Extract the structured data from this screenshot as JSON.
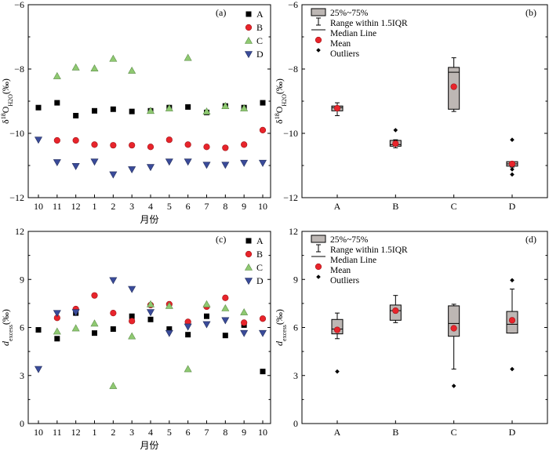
{
  "colors": {
    "A": "#000000",
    "B": "#e8242b",
    "C": "#8fc971",
    "D": "#3a4b9a",
    "box_fill": "#bdb7b4",
    "axis": "#000000"
  },
  "chart_data": [
    {
      "panel": "(a)",
      "type": "scatter",
      "ylabel_html": "δ<tspan baseline-shift='super' font-size='7'>18</tspan>O<tspan baseline-shift='sub' font-size='7'>H2O</tspan>(‰)",
      "ylabel": "δ18OH2O(‰)",
      "xlabel": "月份",
      "x_ticks": [
        "10",
        "11",
        "12",
        "1",
        "2",
        "3",
        "4",
        "5",
        "6",
        "7",
        "8",
        "9",
        "10"
      ],
      "ylim": [
        -12,
        -6
      ],
      "y_ticks": [
        -12,
        -10,
        -8,
        -6
      ],
      "legend": [
        "A",
        "B",
        "C",
        "D"
      ],
      "legend_position": "top-right",
      "series": [
        {
          "name": "A",
          "marker": "square",
          "values": [
            -9.2,
            -9.05,
            -9.45,
            -9.3,
            -9.25,
            -9.32,
            -9.3,
            -9.2,
            -9.18,
            -9.35,
            -9.15,
            -9.2,
            -9.05
          ]
        },
        {
          "name": "B",
          "marker": "circle",
          "values": [
            null,
            -10.22,
            -10.22,
            -10.35,
            -10.37,
            -10.37,
            -10.42,
            -10.2,
            -10.35,
            -10.42,
            -10.45,
            -10.35,
            -9.9
          ]
        },
        {
          "name": "C",
          "marker": "triangle-up",
          "values": [
            null,
            -8.22,
            -7.95,
            -7.98,
            -7.68,
            -8.05,
            -9.3,
            -9.22,
            -7.65,
            -9.32,
            -9.15,
            -9.22,
            null
          ]
        },
        {
          "name": "D",
          "marker": "triangle-down",
          "values": [
            -10.2,
            -10.9,
            -11.02,
            -10.88,
            -11.28,
            -11.12,
            -11.05,
            -10.88,
            -10.88,
            -10.98,
            -10.98,
            -10.92,
            -10.92
          ]
        }
      ]
    },
    {
      "panel": "(b)",
      "type": "box",
      "ylabel": "δ18OH2O(‰)",
      "categories": [
        "A",
        "B",
        "C",
        "D"
      ],
      "ylim": [
        -12,
        -6
      ],
      "y_ticks": [
        -12,
        -10,
        -8,
        -6
      ],
      "legend": [
        "25%~75%",
        "Range within 1.5IQR",
        "Median Line",
        "Mean",
        "Outliers"
      ],
      "legend_position": "top-left",
      "boxes": [
        {
          "name": "A",
          "whisker_low": -9.45,
          "q1": -9.3,
          "median": -9.2,
          "q3": -9.15,
          "whisker_high": -9.05,
          "mean": -9.22,
          "outliers": []
        },
        {
          "name": "B",
          "whisker_low": -10.45,
          "q1": -10.4,
          "median": -10.35,
          "q3": -10.22,
          "whisker_high": -10.2,
          "mean": -10.32,
          "outliers": [
            -9.9
          ]
        },
        {
          "name": "C",
          "whisker_low": -9.32,
          "q1": -9.25,
          "median": -8.1,
          "q3": -7.95,
          "whisker_high": -7.65,
          "mean": -8.55,
          "outliers": []
        },
        {
          "name": "D",
          "whisker_low": -11.05,
          "q1": -11.02,
          "median": -10.95,
          "q3": -10.88,
          "whisker_high": -10.88,
          "mean": -10.95,
          "outliers": [
            -10.2,
            -11.12,
            -11.28
          ]
        }
      ]
    },
    {
      "panel": "(c)",
      "type": "scatter",
      "ylabel": "dexcess(‰)",
      "xlabel": "月份",
      "x_ticks": [
        "10",
        "11",
        "12",
        "1",
        "2",
        "3",
        "4",
        "5",
        "6",
        "7",
        "8",
        "9",
        "10"
      ],
      "ylim": [
        0,
        12
      ],
      "y_ticks": [
        0,
        3,
        6,
        9,
        12
      ],
      "legend": [
        "A",
        "B",
        "C",
        "D"
      ],
      "legend_position": "top-right",
      "series": [
        {
          "name": "A",
          "marker": "square",
          "values": [
            5.85,
            5.3,
            6.9,
            5.65,
            5.9,
            6.7,
            6.5,
            5.9,
            5.55,
            6.7,
            5.5,
            6.15,
            3.25
          ]
        },
        {
          "name": "B",
          "marker": "circle",
          "values": [
            null,
            6.6,
            7.15,
            8.0,
            6.9,
            6.4,
            7.4,
            7.45,
            6.35,
            7.3,
            7.85,
            6.3,
            6.55
          ]
        },
        {
          "name": "C",
          "marker": "triangle-up",
          "values": [
            null,
            5.75,
            5.95,
            6.25,
            2.35,
            5.45,
            7.45,
            7.35,
            3.4,
            7.45,
            7.2,
            6.95,
            null
          ]
        },
        {
          "name": "D",
          "marker": "triangle-down",
          "values": [
            3.4,
            6.9,
            6.95,
            null,
            8.95,
            8.4,
            6.95,
            5.65,
            6.05,
            6.2,
            6.45,
            5.65,
            5.65
          ]
        }
      ]
    },
    {
      "panel": "(d)",
      "type": "box",
      "ylabel": "dexcess(‰)",
      "categories": [
        "A",
        "B",
        "C",
        "D"
      ],
      "ylim": [
        0,
        12
      ],
      "y_ticks": [
        0,
        3,
        6,
        9,
        12
      ],
      "legend": [
        "25%~75%",
        "Range within 1.5IQR",
        "Median Line",
        "Mean",
        "Outliers"
      ],
      "legend_position": "top-left",
      "boxes": [
        {
          "name": "A",
          "whisker_low": 5.3,
          "q1": 5.6,
          "median": 5.9,
          "q3": 6.5,
          "whisker_high": 6.9,
          "mean": 5.85,
          "outliers": [
            3.25
          ]
        },
        {
          "name": "B",
          "whisker_low": 6.3,
          "q1": 6.45,
          "median": 7.05,
          "q3": 7.4,
          "whisker_high": 8.0,
          "mean": 7.05,
          "outliers": []
        },
        {
          "name": "C",
          "whisker_low": 3.4,
          "q1": 5.45,
          "median": 6.25,
          "q3": 7.35,
          "whisker_high": 7.45,
          "mean": 5.95,
          "outliers": [
            2.35
          ]
        },
        {
          "name": "D",
          "whisker_low": 5.65,
          "q1": 5.65,
          "median": 6.2,
          "q3": 7.0,
          "whisker_high": 8.4,
          "mean": 6.45,
          "outliers": [
            8.95,
            3.4
          ]
        }
      ]
    }
  ]
}
